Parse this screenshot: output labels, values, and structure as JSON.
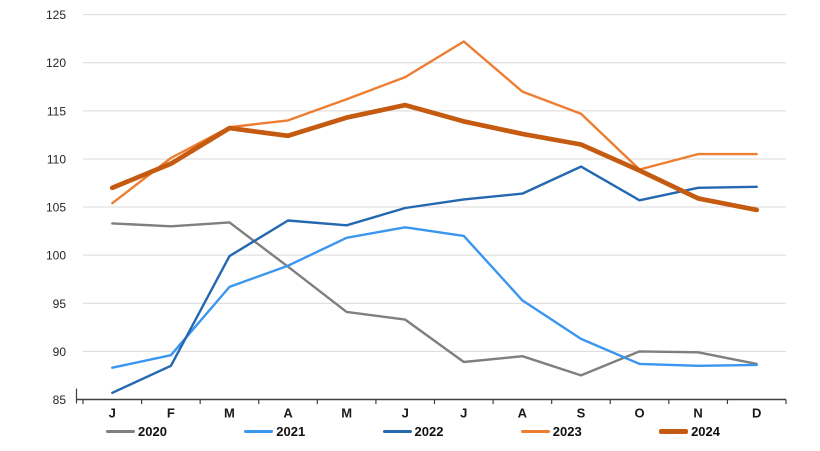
{
  "chart_data": {
    "type": "line",
    "title": "",
    "x_categories": [
      "J",
      "F",
      "M",
      "A",
      "M",
      "J",
      "J",
      "A",
      "S",
      "O",
      "N",
      "D"
    ],
    "y_axis": {
      "min": 85,
      "max": 125,
      "step": 5,
      "ticks": [
        85,
        90,
        95,
        100,
        105,
        110,
        115,
        120,
        125
      ]
    },
    "grid": true,
    "legend_position": "bottom",
    "series": [
      {
        "name": "2020",
        "color": "#7F7F7F",
        "line_weight": "thin",
        "values": [
          103.3,
          103.0,
          103.4,
          98.8,
          94.1,
          93.3,
          88.9,
          89.5,
          87.5,
          90.0,
          89.9,
          88.7
        ]
      },
      {
        "name": "2021",
        "color": "#3B96F0",
        "line_weight": "thin",
        "values": [
          88.3,
          89.6,
          96.7,
          98.9,
          101.8,
          102.9,
          102.0,
          95.3,
          91.3,
          88.7,
          88.5,
          88.6
        ]
      },
      {
        "name": "2022",
        "color": "#2368B0",
        "line_weight": "thin",
        "values": [
          85.7,
          88.5,
          99.9,
          103.6,
          103.1,
          104.9,
          105.8,
          106.4,
          109.2,
          105.7,
          107.0,
          107.1
        ]
      },
      {
        "name": "2023",
        "color": "#ED7D31",
        "line_weight": "thin",
        "values": [
          105.4,
          110.1,
          113.3,
          114.0,
          116.2,
          118.5,
          122.2,
          117.0,
          114.7,
          108.9,
          110.5,
          110.5
        ]
      },
      {
        "name": "2024",
        "color": "#C55A11",
        "line_weight": "thick",
        "values": [
          107.0,
          109.5,
          113.2,
          112.4,
          114.3,
          115.6,
          113.9,
          112.6,
          111.5,
          108.8,
          105.9,
          104.7
        ]
      }
    ],
    "styles": {
      "gridline_color": "#D9D9D9",
      "axis_color": "#404040",
      "y_label_color": "#262626",
      "x_label_color": "#1A1A1A"
    }
  }
}
